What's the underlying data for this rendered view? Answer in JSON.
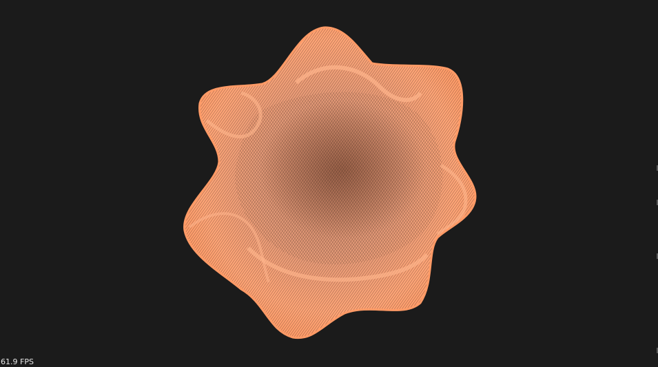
{
  "stats": {
    "fps_label": "61.9 FPS"
  },
  "scene": {
    "background_color": "#1b1b1b",
    "mesh_color": "#ff9a66",
    "mesh_highlight": "#ffc7a8",
    "mesh_shadow": "#7a3f26"
  }
}
